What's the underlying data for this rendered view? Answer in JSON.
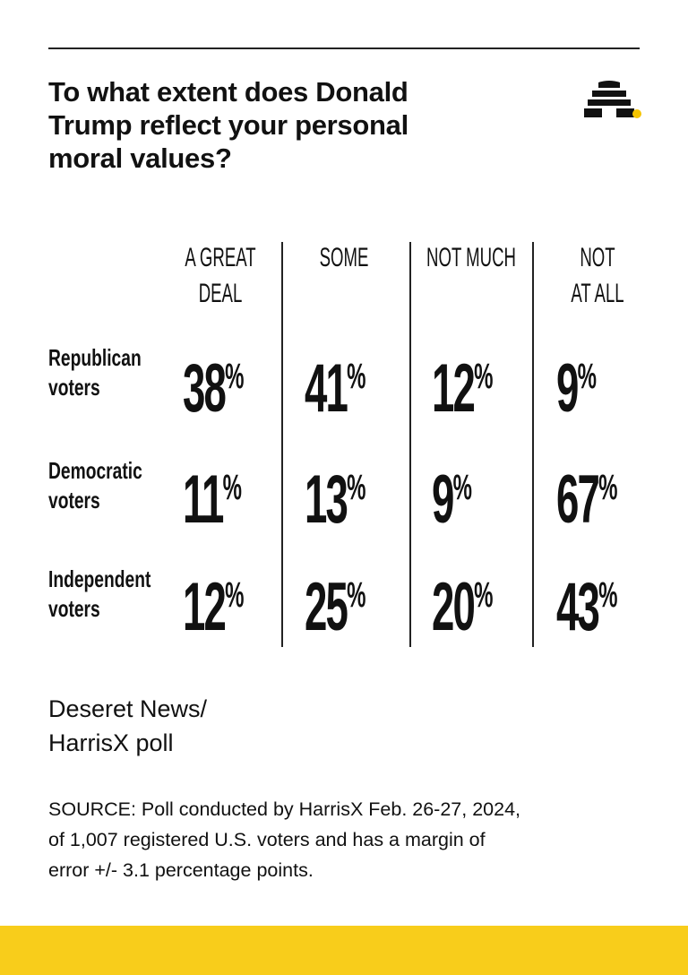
{
  "header": {
    "title": "To what extent does Donald\nTrump reflect your personal\nmoral values?"
  },
  "table": {
    "columns": [
      "A GREAT\nDEAL",
      "SOME",
      "NOT MUCH",
      "NOT\nAT ALL"
    ],
    "rows": [
      {
        "label": "Republican\nvoters",
        "values": [
          "38%",
          "41%",
          "12%",
          "9%"
        ]
      },
      {
        "label": "Democratic\nvoters",
        "values": [
          "11%",
          "13%",
          "9%",
          "67%"
        ]
      },
      {
        "label": "Independent\nvoters",
        "values": [
          "12%",
          "25%",
          "20%",
          "43%"
        ]
      }
    ]
  },
  "credit": "Deseret News/\nHarrisX poll",
  "source": "SOURCE: Poll conducted by HarrisX Feb. 26-27, 2024,\nof 1,007 registered U.S. voters and has a margin of\nerror +/- 3.1 percentage points."
}
